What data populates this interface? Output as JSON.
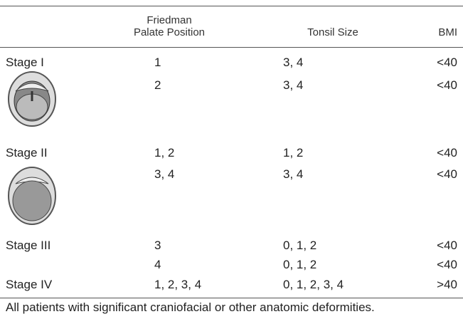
{
  "header": {
    "palate": [
      "Friedman",
      "Palate Position"
    ],
    "tonsil": "Tonsil Size",
    "bmi": "BMI"
  },
  "rows": [
    {
      "stage": "Stage I",
      "palate": "1",
      "tonsil": "3, 4",
      "bmi": "<40"
    },
    {
      "palate": "2",
      "tonsil": "3, 4",
      "bmi": "<40"
    },
    {
      "stage": "Stage II",
      "palate": "1, 2",
      "tonsil": "1, 2",
      "bmi": "<40"
    },
    {
      "palate": "3, 4",
      "tonsil": "3, 4",
      "bmi": "<40"
    },
    {
      "stage": "Stage III",
      "palate": "3",
      "tonsil": "0, 1, 2",
      "bmi": "<40"
    },
    {
      "palate": "4",
      "tonsil": "0, 1, 2",
      "bmi": "<40"
    },
    {
      "stage": "Stage IV",
      "palate": "1, 2, 3, 4",
      "tonsil": "0, 1, 2, 3, 4",
      "bmi": ">40"
    }
  ],
  "footnote": "All patients with significant craniofacial or other anatomic deformities."
}
